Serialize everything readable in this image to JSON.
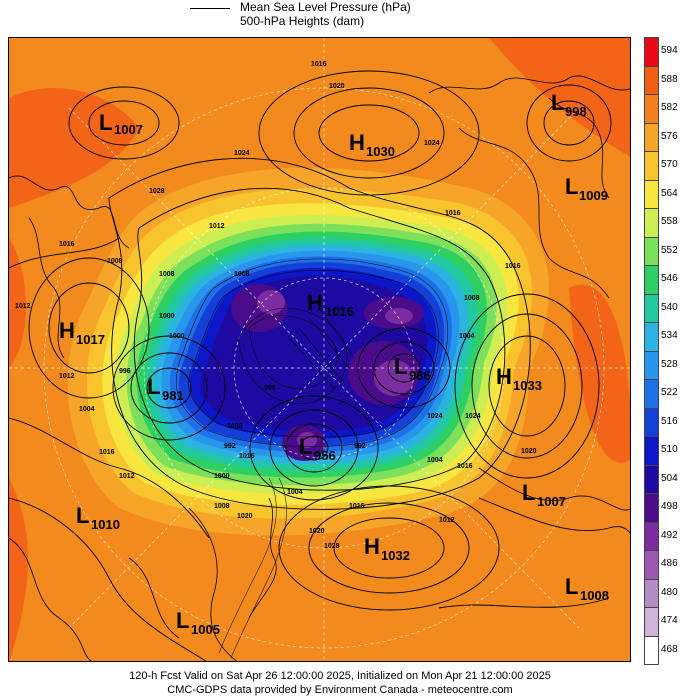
{
  "legend": {
    "mslp_label": "Mean Sea Level Pressure (hPa)",
    "heights_label": "500-hPa Heights (dam)"
  },
  "colorbar": {
    "levels": [
      "594",
      "588",
      "582",
      "576",
      "570",
      "564",
      "558",
      "552",
      "546",
      "540",
      "534",
      "528",
      "522",
      "516",
      "510",
      "504",
      "498",
      "492",
      "486",
      "480",
      "474",
      "468"
    ],
    "colors": [
      "#e8081a",
      "#f25c14",
      "#f2801e",
      "#f7a528",
      "#f7c42e",
      "#f7e640",
      "#ccee52",
      "#7de05a",
      "#2ed064",
      "#22c8a0",
      "#2cb4e0",
      "#2896ec",
      "#1e70e8",
      "#1440d8",
      "#0c18c8",
      "#1e0aa0",
      "#4a0c8a",
      "#7a2ca0",
      "#9c5ab4",
      "#b48cc4",
      "#cfb4d8",
      "#ffffff"
    ]
  },
  "systems": [
    {
      "type": "L",
      "value": "1007",
      "name": "low-1007-nw"
    },
    {
      "type": "H",
      "value": "1030",
      "name": "high-1030-north"
    },
    {
      "type": "L",
      "value": "998",
      "name": "low-998-ne"
    },
    {
      "type": "L",
      "value": "1009",
      "name": "low-1009-east"
    },
    {
      "type": "H",
      "value": "1017",
      "name": "high-1017-west"
    },
    {
      "type": "H",
      "value": "1016",
      "name": "high-1016-center"
    },
    {
      "type": "L",
      "value": "981",
      "name": "low-981-west"
    },
    {
      "type": "L",
      "value": "986",
      "name": "low-986-center"
    },
    {
      "type": "H",
      "value": "1033",
      "name": "high-1033-east"
    },
    {
      "type": "L",
      "value": "956",
      "name": "low-956-south"
    },
    {
      "type": "L",
      "value": "1007",
      "name": "low-1007-se"
    },
    {
      "type": "L",
      "value": "1010",
      "name": "low-1010-sw"
    },
    {
      "type": "H",
      "value": "1032",
      "name": "high-1032-south"
    },
    {
      "type": "L",
      "value": "1008",
      "name": "low-1008-se-corner"
    },
    {
      "type": "L",
      "value": "1005",
      "name": "low-1005-bottom"
    }
  ],
  "isobar_labels": [
    "1016",
    "1020",
    "1024",
    "1024",
    "1028",
    "1016",
    "1012",
    "1016",
    "1008",
    "1012",
    "1016",
    "1012",
    "1004",
    "1000",
    "996",
    "1008",
    "1004",
    "1008",
    "1016",
    "1000",
    "1016",
    "1012",
    "1016",
    "1024",
    "1020",
    "1012",
    "1008",
    "1004",
    "1020",
    "1028",
    "1016",
    "1008",
    "1000",
    "992",
    "996",
    "992",
    "1004",
    "1008",
    "1020",
    "1024"
  ],
  "footer": {
    "line1": "120-h Fcst Valid on Sat Apr 26 12:00:00 2025, Initialized on Mon Apr 21 12:00:00 2025",
    "line2": "CMC-GDPS data provided by Environment Canada - meteocentre.com"
  }
}
